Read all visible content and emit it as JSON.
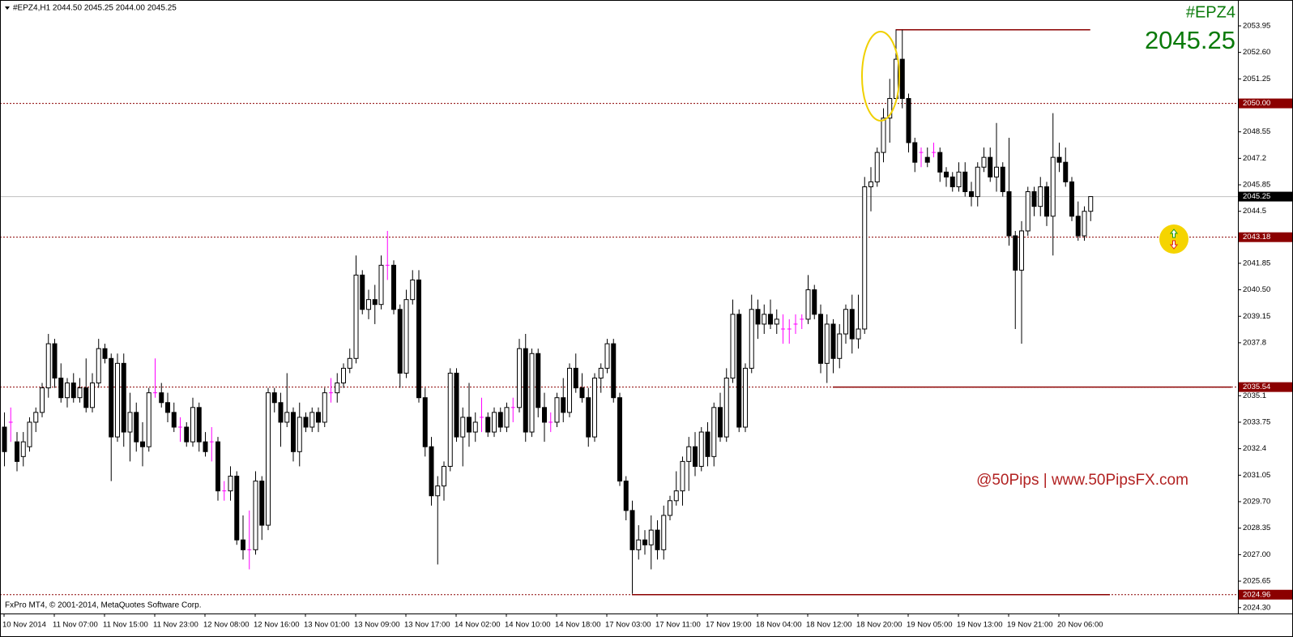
{
  "chart_data": {
    "type": "candlestick",
    "title": "#EPZ4,H1  2044.50 2045.25 2044.00 2045.25",
    "symbol": "#EPZ4",
    "last_price": 2045.25,
    "watermark": "@50Pips | www.50PipsFX.com",
    "copyright": "FxPro MT4, © 2001-2014, MetaQuotes Software Corp.",
    "up_color": "#ffffff",
    "down_color": "#000000",
    "doji_color": "#ff00ff",
    "level_color": "#8b0000",
    "bid_color": "#c0c0c0",
    "ylim": [
      2024.0,
      2055.27
    ],
    "yticks": [
      2053.95,
      {
        "value": 2052.6,
        "label": "2052.60"
      },
      2051.25,
      2048.55,
      2047.2,
      2045.85,
      2044.5,
      2041.85,
      {
        "value": 2040.5,
        "label": "2040.50"
      },
      2039.15,
      2037.8,
      2035.1,
      2033.75,
      2032.4,
      2031.05,
      {
        "value": 2029.7,
        "label": "2029.70"
      },
      2028.35,
      {
        "value": 2027.0,
        "label": "2027.00"
      },
      2025.65,
      {
        "value": 2024.3,
        "label": "2024.30"
      }
    ],
    "levels": [
      {
        "value": 2050,
        "label": "2050.00"
      },
      2043.18,
      2035.54,
      2024.96
    ],
    "bid": 2045.25,
    "trend_line": 2053.75,
    "categories": [
      "10 Nov 2014",
      null,
      null,
      null,
      null,
      null,
      null,
      null,
      "11 Nov 07:00",
      null,
      null,
      null,
      null,
      null,
      null,
      null,
      "11 Nov 15:00",
      null,
      null,
      null,
      null,
      null,
      null,
      null,
      "11 Nov 23:00",
      null,
      null,
      null,
      null,
      null,
      null,
      null,
      "12 Nov 08:00",
      null,
      null,
      null,
      null,
      null,
      null,
      null,
      "12 Nov 16:00",
      null,
      null,
      null,
      null,
      null,
      null,
      null,
      "13 Nov 01:00",
      null,
      null,
      null,
      null,
      null,
      null,
      null,
      "13 Nov 09:00",
      null,
      null,
      null,
      null,
      null,
      null,
      null,
      "13 Nov 17:00",
      null,
      null,
      null,
      null,
      null,
      null,
      null,
      "14 Nov 02:00",
      null,
      null,
      null,
      null,
      null,
      null,
      null,
      "14 Nov 10:00",
      null,
      null,
      null,
      null,
      null,
      null,
      null,
      "14 Nov 18:00",
      null,
      null,
      null,
      null,
      null,
      null,
      null,
      "17 Nov 03:00",
      null,
      null,
      null,
      null,
      null,
      null,
      null,
      "17 Nov 11:00",
      null,
      null,
      null,
      null,
      null,
      null,
      null,
      "17 Nov 19:00",
      null,
      null,
      null,
      null,
      null,
      null,
      null,
      "18 Nov 04:00",
      null,
      null,
      null,
      null,
      null,
      null,
      null,
      "18 Nov 12:00",
      null,
      null,
      null,
      null,
      null,
      null,
      null,
      "18 Nov 20:00",
      null,
      null,
      null,
      null,
      null,
      null,
      null,
      "19 Nov 05:00",
      null,
      null,
      null,
      null,
      null,
      null,
      null,
      "19 Nov 13:00",
      null,
      null,
      null,
      null,
      null,
      null,
      null,
      "19 Nov 21:00",
      null,
      null,
      null,
      null,
      null,
      null,
      null,
      "20 Nov 06:00",
      null,
      null,
      null,
      null,
      null
    ],
    "ohlc": [
      [
        2033.5,
        2034.25,
        2031.5,
        2032.25
      ],
      [
        2033.75,
        2034.5,
        2032.75,
        2033.75
      ],
      [
        2032.75,
        2033.25,
        2031.25,
        2031.75
      ],
      [
        2032,
        2033.25,
        2031.5,
        2032.75
      ],
      [
        2032.5,
        2034,
        2032.25,
        2033.75
      ],
      [
        2033.75,
        2034.5,
        2033.25,
        2034.25
      ],
      [
        2034.25,
        2035.75,
        2034,
        2035.5
      ],
      [
        2035.5,
        2038.25,
        2035,
        2037.75
      ],
      [
        2037.75,
        2038,
        2035.5,
        2036
      ],
      [
        2036,
        2036.75,
        2034.75,
        2035
      ],
      [
        2035,
        2036,
        2034.5,
        2035.75
      ],
      [
        2035.75,
        2036.25,
        2034.75,
        2035
      ],
      [
        2035,
        2036,
        2034.75,
        2035.5
      ],
      [
        2035.5,
        2037,
        2034.25,
        2034.5
      ],
      [
        2034.5,
        2036.25,
        2034.25,
        2035.75
      ],
      [
        2035.75,
        2038,
        2035.5,
        2037.5
      ],
      [
        2037.5,
        2037.75,
        2036.75,
        2037
      ],
      [
        2037,
        2037.25,
        2030.75,
        2033
      ],
      [
        2033,
        2037.25,
        2032.75,
        2036.75
      ],
      [
        2036.75,
        2037.25,
        2032.5,
        2033.25
      ],
      [
        2033.25,
        2035.25,
        2031.75,
        2034.25
      ],
      [
        2034.25,
        2034.75,
        2032.25,
        2032.75
      ],
      [
        2032.75,
        2033.75,
        2031.5,
        2032.5
      ],
      [
        2032.5,
        2035.5,
        2032.25,
        2035.25
      ],
      [
        2035.25,
        2037,
        2035,
        2035.25
      ],
      [
        2035.25,
        2035.75,
        2034.5,
        2034.75
      ],
      [
        2034.75,
        2035.25,
        2033.75,
        2034.25
      ],
      [
        2034.25,
        2034.75,
        2033.25,
        2033.5
      ],
      [
        2033.5,
        2034,
        2032.75,
        2033.5
      ],
      [
        2033.5,
        2033.75,
        2032.5,
        2032.75
      ],
      [
        2032.75,
        2035,
        2032.5,
        2034.5
      ],
      [
        2034.5,
        2034.75,
        2032.25,
        2032.75
      ],
      [
        2032.75,
        2033.25,
        2032,
        2032.25
      ],
      [
        2032.75,
        2033.5,
        2031.75,
        2032.75
      ],
      [
        2032.75,
        2033,
        2029.75,
        2030.25
      ],
      [
        2030.25,
        2030.75,
        2029.75,
        2030.25
      ],
      [
        2030.25,
        2031.5,
        2029.75,
        2031
      ],
      [
        2031,
        2031.25,
        2027.5,
        2027.75
      ],
      [
        2027.75,
        2029,
        2026.75,
        2027.25
      ],
      [
        2027.25,
        2029.25,
        2026.25,
        2027.25
      ],
      [
        2027.25,
        2031.25,
        2027,
        2030.75
      ],
      [
        2030.75,
        2031,
        2027.75,
        2028.5
      ],
      [
        2028.5,
        2035.5,
        2028.25,
        2035.25
      ],
      [
        2035.25,
        2035.5,
        2034.25,
        2034.75
      ],
      [
        2034.75,
        2035.25,
        2032.5,
        2033.75
      ],
      [
        2033.75,
        2036.25,
        2033.5,
        2034.25
      ],
      [
        2034.25,
        2034.5,
        2031.75,
        2032.25
      ],
      [
        2032.25,
        2034.75,
        2031.5,
        2034
      ],
      [
        2034,
        2034.25,
        2033.25,
        2033.5
      ],
      [
        2033.5,
        2034.5,
        2033.25,
        2034.25
      ],
      [
        2034.25,
        2034.5,
        2033.25,
        2033.75
      ],
      [
        2033.75,
        2035.5,
        2033.5,
        2035.25
      ],
      [
        2035.25,
        2036,
        2034.75,
        2035.25
      ],
      [
        2035.25,
        2036.25,
        2034.75,
        2035.75
      ],
      [
        2035.75,
        2036.75,
        2035.5,
        2036.5
      ],
      [
        2036.5,
        2037.5,
        2036.25,
        2037
      ],
      [
        2037,
        2042.25,
        2036.75,
        2041.25
      ],
      [
        2041.25,
        2041.5,
        2039.25,
        2039.5
      ],
      [
        2039.5,
        2040.5,
        2039,
        2040
      ],
      [
        2040,
        2040.75,
        2038.75,
        2039.75
      ],
      [
        2039.75,
        2042.25,
        2039.5,
        2041.75
      ],
      [
        2041.75,
        2043.5,
        2041,
        2041.75
      ],
      [
        2041.75,
        2042,
        2039.25,
        2039.5
      ],
      [
        2039.5,
        2039.75,
        2035.5,
        2036.25
      ],
      [
        2036.25,
        2040.5,
        2036,
        2040
      ],
      [
        2040,
        2041.5,
        2039.75,
        2041
      ],
      [
        2041,
        2041.5,
        2034.75,
        2035
      ],
      [
        2035,
        2035.5,
        2032,
        2032.5
      ],
      [
        2032.5,
        2033,
        2029.5,
        2030
      ],
      [
        2030,
        2031,
        2026.5,
        2030.5
      ],
      [
        2030.5,
        2031.75,
        2029.75,
        2031.5
      ],
      [
        2031.5,
        2036.5,
        2031.25,
        2036.25
      ],
      [
        2036.25,
        2036.5,
        2032.75,
        2033
      ],
      [
        2033,
        2034.5,
        2031.5,
        2034
      ],
      [
        2034,
        2035.75,
        2032.5,
        2033.25
      ],
      [
        2033.25,
        2034.25,
        2032.75,
        2033.75
      ],
      [
        2034,
        2035,
        2033.25,
        2034
      ],
      [
        2034,
        2034.25,
        2033,
        2033.25
      ],
      [
        2033.25,
        2034.5,
        2033,
        2034.25
      ],
      [
        2034.25,
        2034.5,
        2033.25,
        2033.5
      ],
      [
        2033.5,
        2034.75,
        2033.25,
        2034.5
      ],
      [
        2034.5,
        2035,
        2033.75,
        2034.5
      ],
      [
        2034.5,
        2038,
        2034.25,
        2037.5
      ],
      [
        2037.5,
        2038.25,
        2032.75,
        2033.25
      ],
      [
        2033.25,
        2037.5,
        2033,
        2037.25
      ],
      [
        2037.25,
        2037.5,
        2034,
        2034.5
      ],
      [
        2034.5,
        2035.25,
        2032.75,
        2033.75
      ],
      [
        2033.75,
        2034.25,
        2033.25,
        2033.75
      ],
      [
        2033.75,
        2035.25,
        2033.5,
        2035
      ],
      [
        2035,
        2036,
        2033.75,
        2034.25
      ],
      [
        2034.25,
        2036.75,
        2034,
        2036.5
      ],
      [
        2036.5,
        2037.25,
        2035.25,
        2035.5
      ],
      [
        2035.5,
        2036.25,
        2034.75,
        2035
      ],
      [
        2035,
        2035.5,
        2032.5,
        2033
      ],
      [
        2033,
        2036.25,
        2032.75,
        2036
      ],
      [
        2036,
        2036.75,
        2035.25,
        2036.5
      ],
      [
        2036.5,
        2038,
        2036.25,
        2037.75
      ],
      [
        2037.75,
        2038,
        2034.75,
        2035
      ],
      [
        2035,
        2035.25,
        2030.5,
        2030.75
      ],
      [
        2030.75,
        2031,
        2028.75,
        2029.25
      ],
      [
        2029.25,
        2029.75,
        2025,
        2027.25
      ],
      [
        2027.25,
        2028.5,
        2026.75,
        2027.75
      ],
      [
        2027.75,
        2028.25,
        2027,
        2027.5
      ],
      [
        2027.5,
        2029,
        2026.25,
        2028.25
      ],
      [
        2028.25,
        2028.75,
        2026.75,
        2027.25
      ],
      [
        2027.25,
        2029.5,
        2026.75,
        2029
      ],
      [
        2029,
        2030,
        2028.75,
        2029.75
      ],
      [
        2029.75,
        2031.25,
        2029.5,
        2030.25
      ],
      [
        2030.25,
        2032,
        2029.5,
        2031.75
      ],
      [
        2031.75,
        2033,
        2030.25,
        2032.5
      ],
      [
        2032.5,
        2033.25,
        2031,
        2031.5
      ],
      [
        2031.5,
        2033.5,
        2031.25,
        2033.25
      ],
      [
        2033.25,
        2033.75,
        2031.5,
        2032
      ],
      [
        2032,
        2034.75,
        2031.5,
        2034.5
      ],
      [
        2034.5,
        2035.25,
        2032.75,
        2033
      ],
      [
        2033,
        2036.5,
        2032.75,
        2036
      ],
      [
        2036,
        2040,
        2035.75,
        2039.25
      ],
      [
        2039.25,
        2039.5,
        2033.25,
        2033.5
      ],
      [
        2033.5,
        2036.75,
        2033.25,
        2036.5
      ],
      [
        2036.5,
        2040.25,
        2036.25,
        2039.5
      ],
      [
        2039.5,
        2040,
        2038,
        2038.75
      ],
      [
        2038.75,
        2039.75,
        2038.25,
        2039.25
      ],
      [
        2039.25,
        2040,
        2038.5,
        2038.75
      ],
      [
        2038.75,
        2039.5,
        2038.25,
        2039
      ],
      [
        2038.5,
        2039.25,
        2037.75,
        2038.5
      ],
      [
        2038.5,
        2039,
        2037.75,
        2038.5
      ],
      [
        2038.75,
        2039.25,
        2038.25,
        2038.75
      ],
      [
        2039,
        2039.25,
        2038.5,
        2039
      ],
      [
        2039,
        2041.25,
        2038.75,
        2040.5
      ],
      [
        2040.5,
        2040.75,
        2039,
        2039.25
      ],
      [
        2039.25,
        2039.75,
        2036.25,
        2036.75
      ],
      [
        2036.75,
        2039.25,
        2035.75,
        2038.75
      ],
      [
        2038.75,
        2039,
        2036.25,
        2037
      ],
      [
        2037,
        2038.75,
        2036.5,
        2038.25
      ],
      [
        2038.25,
        2039.75,
        2037.75,
        2039.5
      ],
      [
        2039.5,
        2040.25,
        2037.25,
        2038
      ],
      [
        2038,
        2040.25,
        2037.5,
        2038.5
      ],
      [
        2038.5,
        2046.25,
        2038.25,
        2045.75
      ],
      [
        2045.75,
        2046.75,
        2044.5,
        2046
      ],
      [
        2046,
        2047.75,
        2045.75,
        2047.5
      ],
      [
        2047.5,
        2049.75,
        2047,
        2049.25
      ],
      [
        2049.25,
        2051.25,
        2048,
        2050.25
      ],
      [
        2050.25,
        2053.75,
        2050,
        2052.25
      ],
      [
        2052.25,
        2053.75,
        2049.75,
        2050.25
      ],
      [
        2050.25,
        2050.5,
        2047.5,
        2048
      ],
      [
        2048,
        2048.25,
        2046.5,
        2047
      ],
      [
        2047.5,
        2047.75,
        2046.75,
        2047.5
      ],
      [
        2047.25,
        2047.75,
        2046.75,
        2047
      ],
      [
        2047.5,
        2048,
        2047.25,
        2047.5
      ],
      [
        2047.5,
        2047.75,
        2046,
        2046.5
      ],
      [
        2046.5,
        2046.75,
        2045.75,
        2046.25
      ],
      [
        2046.25,
        2046.5,
        2045.5,
        2045.75
      ],
      [
        2045.75,
        2047,
        2045.5,
        2046.5
      ],
      [
        2046.5,
        2047,
        2045.25,
        2045.5
      ],
      [
        2045.5,
        2046,
        2044.75,
        2045.25
      ],
      [
        2045.25,
        2047,
        2044.75,
        2046.75
      ],
      [
        2046.75,
        2047.75,
        2046.5,
        2047.25
      ],
      [
        2047.25,
        2047.75,
        2046,
        2046.25
      ],
      [
        2046.25,
        2049,
        2045.5,
        2046.75
      ],
      [
        2046.75,
        2047,
        2045.25,
        2045.5
      ],
      [
        2045.5,
        2048.25,
        2042.75,
        2043.25
      ],
      [
        2043.25,
        2043.5,
        2038.5,
        2041.5
      ],
      [
        2041.5,
        2044,
        2037.75,
        2043.5
      ],
      [
        2043.5,
        2045.75,
        2043.25,
        2045.5
      ],
      [
        2045.5,
        2045.75,
        2044.25,
        2044.75
      ],
      [
        2044.75,
        2046.25,
        2044.25,
        2045.75
      ],
      [
        2045.75,
        2046,
        2043.75,
        2044.25
      ],
      [
        2044.25,
        2049.5,
        2042.25,
        2047.25
      ],
      [
        2047.25,
        2048,
        2046.5,
        2047
      ],
      [
        2047,
        2047.75,
        2045.75,
        2046
      ],
      [
        2046,
        2046.25,
        2044,
        2044.25
      ],
      [
        2044.25,
        2045,
        2043,
        2043.25
      ],
      [
        2043.25,
        2044.75,
        2043,
        2044.5
      ],
      [
        2044.5,
        2045.25,
        2044,
        2045.25
      ]
    ]
  }
}
